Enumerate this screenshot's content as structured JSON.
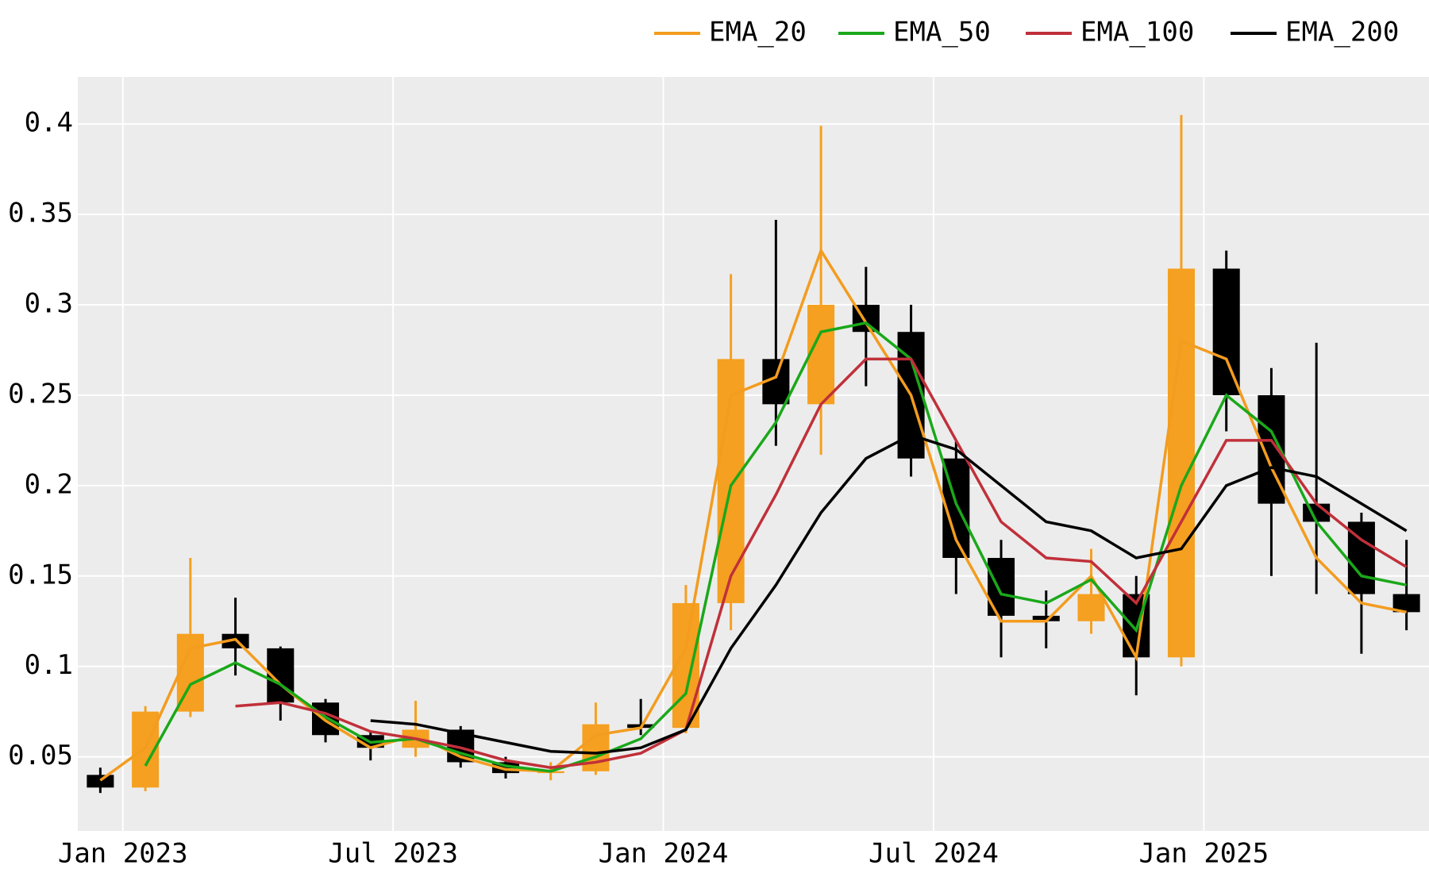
{
  "chart_data": {
    "type": "candlestick",
    "x": [
      "2022-12",
      "2023-01",
      "2023-02",
      "2023-03",
      "2023-04",
      "2023-05",
      "2023-06",
      "2023-07",
      "2023-08",
      "2023-09",
      "2023-10",
      "2023-11",
      "2023-12",
      "2024-01",
      "2024-02",
      "2024-03",
      "2024-04",
      "2024-05",
      "2024-06",
      "2024-07",
      "2024-08",
      "2024-09",
      "2024-10",
      "2024-11",
      "2024-12",
      "2025-01",
      "2025-02",
      "2025-03",
      "2025-04",
      "2025-05"
    ],
    "open": [
      0.04,
      0.033,
      0.075,
      0.118,
      0.11,
      0.08,
      0.062,
      0.055,
      0.065,
      0.047,
      0.041,
      0.042,
      0.068,
      0.066,
      0.135,
      0.27,
      0.245,
      0.3,
      0.285,
      0.215,
      0.16,
      0.128,
      0.125,
      0.14,
      0.105,
      0.32,
      0.25,
      0.19,
      0.18,
      0.14
    ],
    "high": [
      0.044,
      0.078,
      0.16,
      0.138,
      0.111,
      0.082,
      0.064,
      0.081,
      0.067,
      0.05,
      0.047,
      0.08,
      0.082,
      0.145,
      0.317,
      0.347,
      0.399,
      0.321,
      0.3,
      0.225,
      0.17,
      0.142,
      0.165,
      0.15,
      0.405,
      0.33,
      0.265,
      0.279,
      0.185,
      0.17
    ],
    "low": [
      0.03,
      0.031,
      0.072,
      0.095,
      0.07,
      0.058,
      0.048,
      0.05,
      0.044,
      0.038,
      0.037,
      0.04,
      0.062,
      0.063,
      0.12,
      0.222,
      0.217,
      0.255,
      0.205,
      0.14,
      0.105,
      0.11,
      0.118,
      0.084,
      0.1,
      0.23,
      0.15,
      0.14,
      0.107,
      0.12
    ],
    "close": [
      0.033,
      0.075,
      0.118,
      0.11,
      0.08,
      0.062,
      0.055,
      0.065,
      0.047,
      0.041,
      0.042,
      0.068,
      0.066,
      0.135,
      0.27,
      0.245,
      0.3,
      0.285,
      0.215,
      0.16,
      0.128,
      0.125,
      0.14,
      0.105,
      0.32,
      0.25,
      0.19,
      0.18,
      0.14,
      0.13
    ],
    "up_color": "#f5a020",
    "down_color": "#000000",
    "series": [
      {
        "name": "EMA_20",
        "color": "#f39c1f",
        "values": [
          0.037,
          0.055,
          0.11,
          0.115,
          0.09,
          0.07,
          0.055,
          0.062,
          0.05,
          0.043,
          0.042,
          0.062,
          0.066,
          0.11,
          0.25,
          0.26,
          0.33,
          0.29,
          0.25,
          0.17,
          0.125,
          0.125,
          0.15,
          0.105,
          0.28,
          0.27,
          0.21,
          0.16,
          0.135,
          0.13
        ]
      },
      {
        "name": "EMA_50",
        "color": "#1aa81a",
        "values": [
          null,
          0.045,
          0.09,
          0.102,
          0.09,
          0.072,
          0.058,
          0.06,
          0.052,
          0.045,
          0.042,
          0.05,
          0.06,
          0.085,
          0.2,
          0.235,
          0.285,
          0.29,
          0.27,
          0.19,
          0.14,
          0.135,
          0.148,
          0.12,
          0.2,
          0.25,
          0.23,
          0.18,
          0.15,
          0.145
        ]
      },
      {
        "name": "EMA_100",
        "color": "#c0303a",
        "values": [
          null,
          null,
          null,
          0.078,
          0.08,
          0.074,
          0.064,
          0.06,
          0.055,
          0.048,
          0.044,
          0.047,
          0.052,
          0.065,
          0.15,
          0.195,
          0.245,
          0.27,
          0.27,
          0.225,
          0.18,
          0.16,
          0.158,
          0.135,
          0.18,
          0.225,
          0.225,
          0.19,
          0.17,
          0.155
        ]
      },
      {
        "name": "EMA_200",
        "color": "#000000",
        "values": [
          null,
          null,
          null,
          null,
          null,
          null,
          0.07,
          0.068,
          0.063,
          0.058,
          0.053,
          0.052,
          0.055,
          0.065,
          0.11,
          0.145,
          0.185,
          0.215,
          0.228,
          0.22,
          0.2,
          0.18,
          0.175,
          0.16,
          0.165,
          0.2,
          0.21,
          0.205,
          0.19,
          0.175
        ]
      }
    ],
    "xlim": [
      "2022-12",
      "2025-06"
    ],
    "xticks": [
      {
        "value": "2023-01",
        "label": "Jan 2023"
      },
      {
        "value": "2023-07",
        "label": "Jul 2023"
      },
      {
        "value": "2024-01",
        "label": "Jan 2024"
      },
      {
        "value": "2024-07",
        "label": "Jul 2024"
      },
      {
        "value": "2025-01",
        "label": "Jan 2025"
      }
    ],
    "ylim": [
      0.009,
      0.426
    ],
    "yticks": [
      0.05,
      0.1,
      0.15,
      0.2,
      0.25,
      0.3,
      0.35,
      0.4
    ],
    "grid": true,
    "legend": "top-right"
  }
}
